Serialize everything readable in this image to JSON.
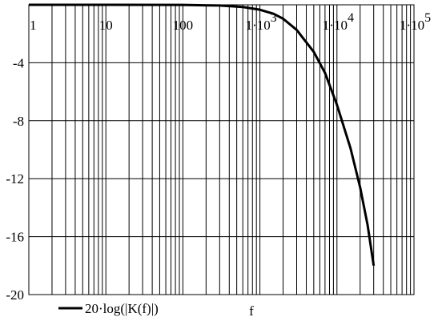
{
  "chart_data": {
    "type": "line",
    "x_scale": "log",
    "xlim": [
      1,
      100000
    ],
    "ylim": [
      -20,
      0
    ],
    "x_ticks": [
      {
        "value": 1,
        "label": "1"
      },
      {
        "value": 10,
        "label": "10"
      },
      {
        "value": 100,
        "label": "100"
      },
      {
        "value": 1000,
        "label": "1·10",
        "exp": "3"
      },
      {
        "value": 10000,
        "label": "1·10",
        "exp": "4"
      },
      {
        "value": 100000,
        "label": "1·10",
        "exp": "5"
      }
    ],
    "y_ticks": [
      {
        "value": -4,
        "label": "-4"
      },
      {
        "value": -8,
        "label": "-8"
      },
      {
        "value": -12,
        "label": "-12"
      },
      {
        "value": -16,
        "label": "-16"
      },
      {
        "value": -20,
        "label": "-20"
      }
    ],
    "grid": true,
    "xlabel": "f",
    "series": [
      {
        "name": "20·log(|K(f)|)",
        "color": "#000000",
        "x": [
          1,
          10,
          100,
          300,
          600,
          1000,
          1500,
          2000,
          3000,
          5000,
          7000,
          10000,
          15000,
          20000,
          25000,
          30000
        ],
        "y": [
          0,
          0,
          -0.01,
          -0.05,
          -0.15,
          -0.34,
          -0.62,
          -0.96,
          -1.73,
          -3.25,
          -4.7,
          -6.9,
          -9.9,
          -12.6,
          -15.2,
          -18.0
        ]
      }
    ]
  }
}
